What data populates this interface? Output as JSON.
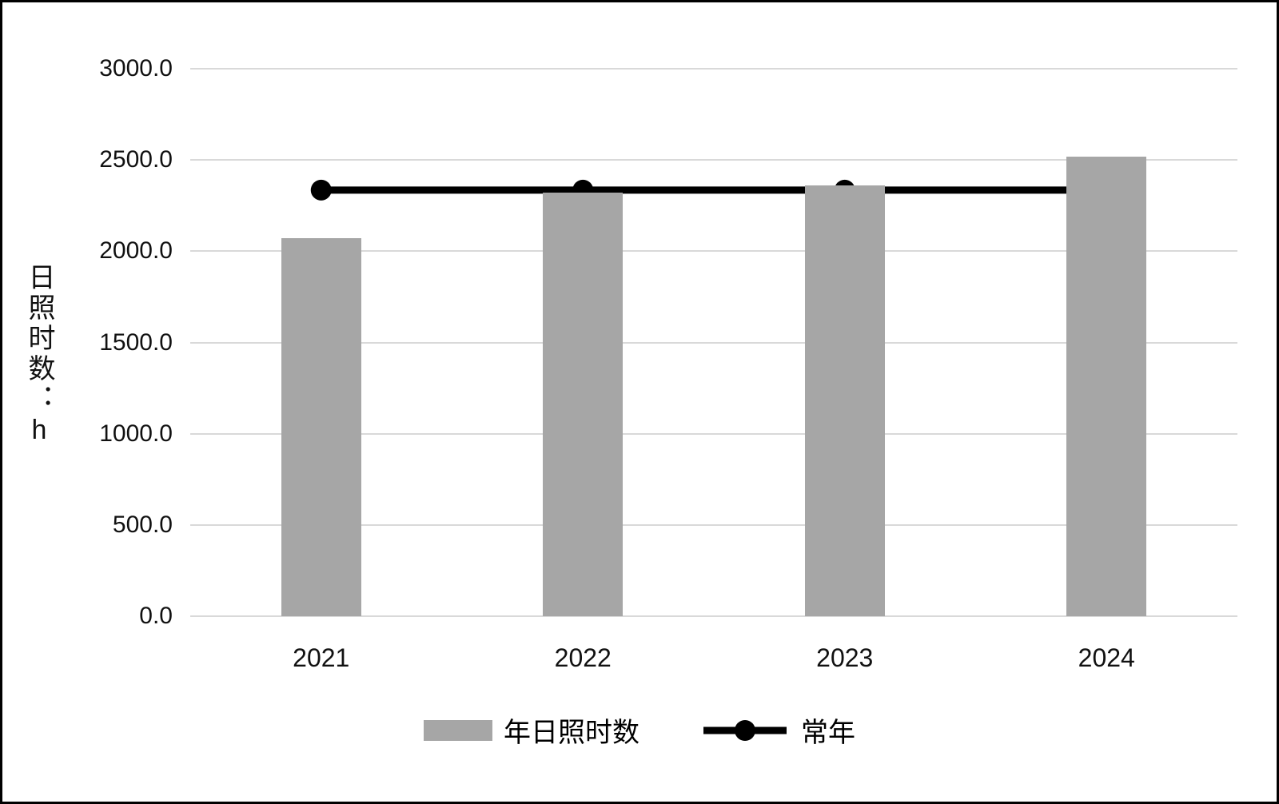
{
  "chart_data": {
    "type": "bar",
    "categories": [
      "2021",
      "2022",
      "2023",
      "2024"
    ],
    "series": [
      {
        "name": "年日照时数",
        "type": "bar",
        "color": "#a6a6a6",
        "values": [
          2070,
          2320,
          2360,
          2520
        ]
      },
      {
        "name": "常年",
        "type": "line",
        "color": "#000000",
        "values": [
          2335,
          2335,
          2335,
          2335
        ]
      }
    ],
    "title": "",
    "xlabel": "",
    "ylabel": "日照时数：h",
    "ylim": [
      0,
      3000
    ],
    "ytick_step": 500,
    "ytick_decimals": 1,
    "grid": true,
    "legend_position": "bottom"
  },
  "colors": {
    "gridline": "#d9d9d9",
    "bar": "#a6a6a6",
    "line": "#000000",
    "text": "#111111"
  }
}
